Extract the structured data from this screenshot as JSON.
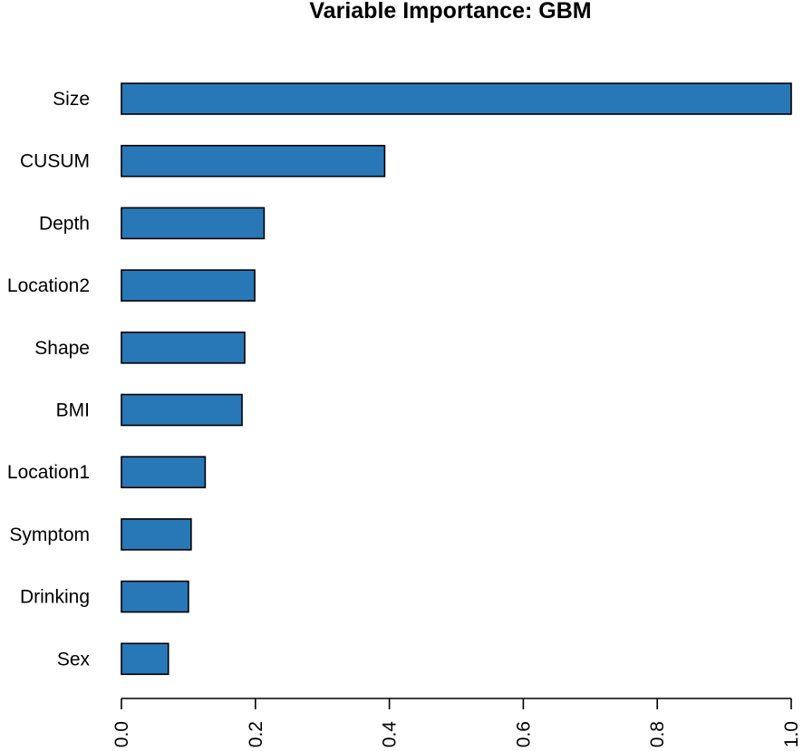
{
  "chart_data": {
    "type": "bar",
    "orientation": "horizontal",
    "title": "Variable Importance: GBM",
    "xlabel": "",
    "ylabel": "",
    "categories": [
      "Size",
      "CUSUM",
      "Depth",
      "Location2",
      "Shape",
      "BMI",
      "Location1",
      "Symptom",
      "Drinking",
      "Sex"
    ],
    "values": [
      1.0,
      0.393,
      0.213,
      0.199,
      0.184,
      0.18,
      0.125,
      0.104,
      0.1,
      0.07
    ],
    "xlim": [
      0,
      1
    ],
    "xticks": [
      0.0,
      0.2,
      0.4,
      0.6,
      0.8,
      1.0
    ],
    "xtick_labels": [
      "0.0",
      "0.2",
      "0.4",
      "0.6",
      "0.8",
      "1.0"
    ],
    "bar_color": "#2878b8",
    "bar_edge_color": "#000000",
    "grid": false,
    "legend": "none"
  }
}
